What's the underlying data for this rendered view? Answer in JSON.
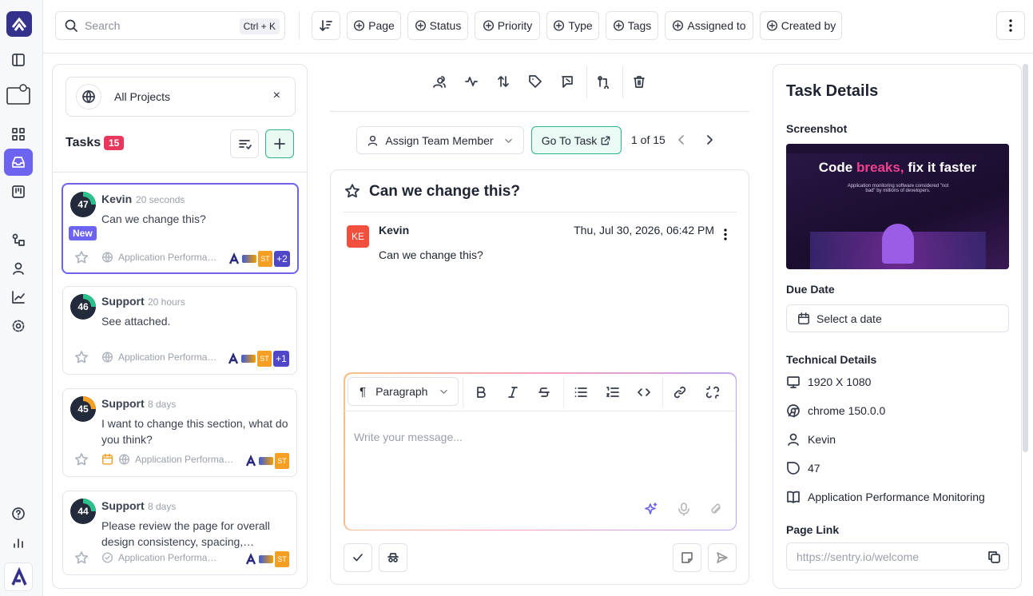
{
  "toolbar": {
    "search_placeholder": "Search",
    "shortcut": "Ctrl + K",
    "filters": [
      "Page",
      "Status",
      "Priority",
      "Type",
      "Tags",
      "Assigned to",
      "Created by"
    ]
  },
  "task_list": {
    "project": "All Projects",
    "title": "Tasks",
    "count": "15",
    "tasks": [
      {
        "score": "47",
        "ring": "#2cc08a",
        "author": "Kevin",
        "time": "20 seconds",
        "text": "Can we change this?",
        "badge": "New",
        "project": "Application Performa…",
        "assignee": "ST",
        "extra": "+2",
        "selected": true
      },
      {
        "score": "46",
        "ring": "#2cc08a",
        "author": "Support",
        "time": "20 hours",
        "text": "See attached.",
        "project": "Application Performa…",
        "assignee": "ST",
        "extra": "+1"
      },
      {
        "score": "45",
        "ring": "#f5a023",
        "author": "Support",
        "time": "8 days",
        "text": "I want to change this section, what do you think?",
        "project": "Application Performa…",
        "assignee": "ST",
        "due": true
      },
      {
        "score": "44",
        "ring": "#2cc08a",
        "author": "Support",
        "time": "8 days",
        "text": "Please review the page for overall design consistency, spacing,…",
        "project": "Application Performa…",
        "assignee": "ST",
        "done": true
      }
    ]
  },
  "conversation": {
    "assign": "Assign Team Member",
    "goto": "Go To Task",
    "pager": "1 of 15",
    "title": "Can we change this?",
    "message": {
      "initials": "KE",
      "author": "Kevin",
      "date": "Thu, Jul 30, 2026, 06:42 PM",
      "text": "Can we change this?"
    },
    "editor": {
      "format": "Paragraph",
      "placeholder": "Write your message..."
    }
  },
  "details": {
    "title": "Task Details",
    "screenshot_label": "Screenshot",
    "screenshot": {
      "headline_1": "Code",
      "headline_2": "breaks,",
      "headline_3": "fix it faster",
      "subtitle": "Application monitoring software considered \"not bad\" by millions of developers."
    },
    "due_label": "Due Date",
    "due_placeholder": "Select a date",
    "tech_label": "Technical Details",
    "tech": {
      "resolution": "1920 X 1080",
      "browser": "chrome 150.0.0",
      "user": "Kevin",
      "score": "47",
      "project": "Application Performance Monitoring"
    },
    "page_link_label": "Page Link",
    "page_link": "https://sentry.io/welcome"
  }
}
